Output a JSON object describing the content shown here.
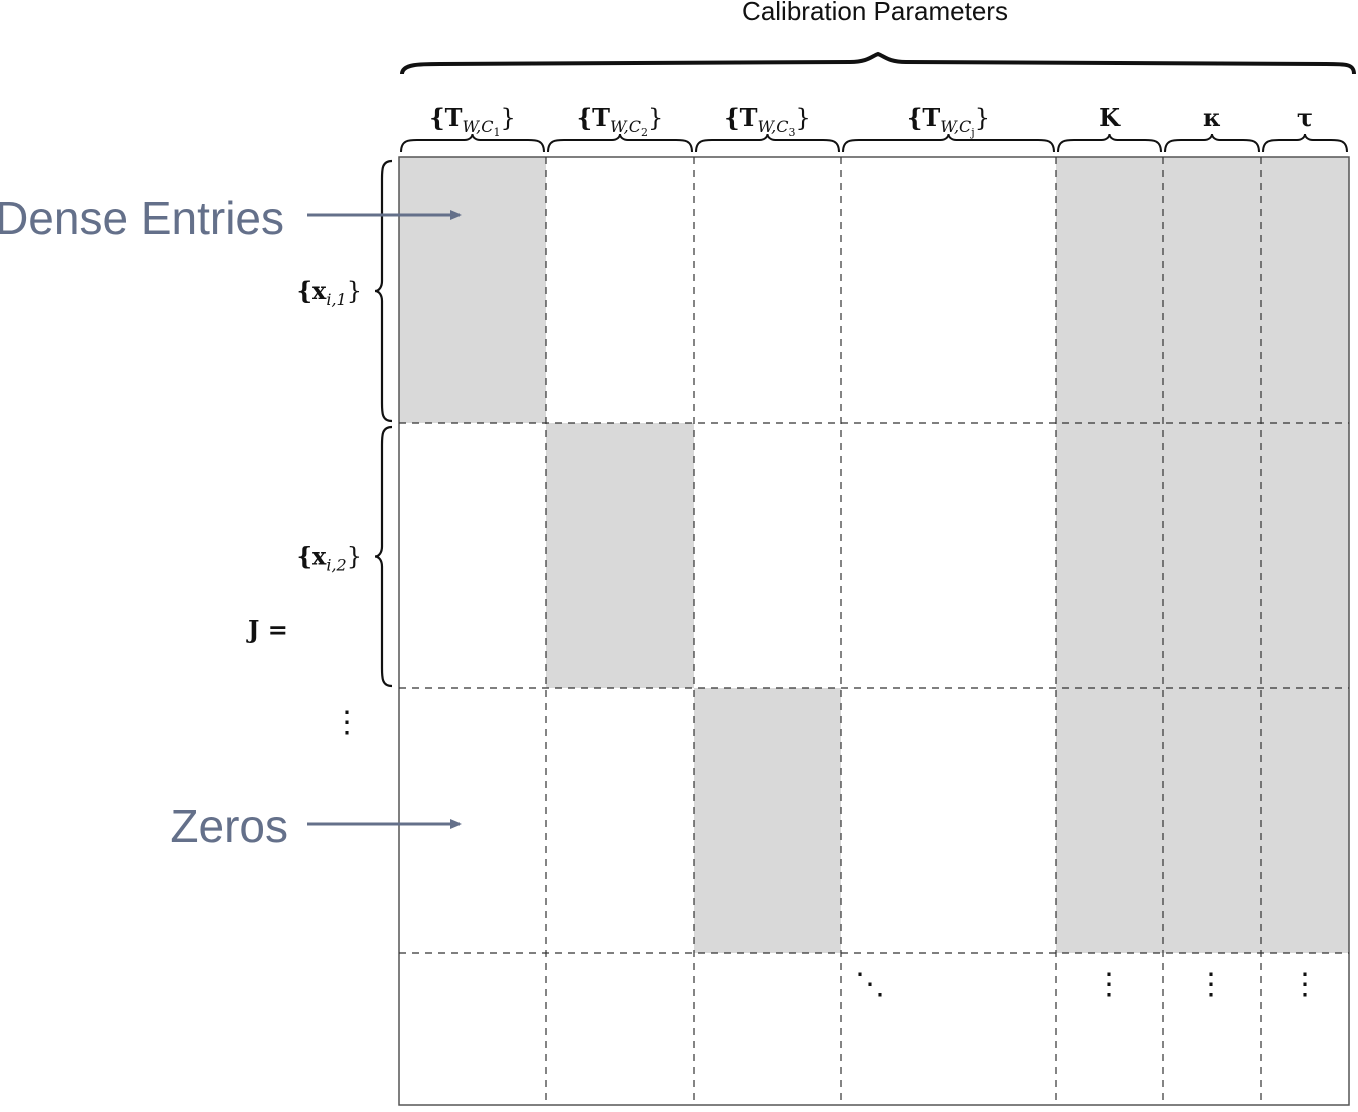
{
  "title": "Calibration Parameters",
  "matrix_label": "J =",
  "columns": [
    {
      "id": "T_WC1",
      "label_main": "{T",
      "label_sub": "W,C",
      "label_subsub": "1",
      "label_close": "}"
    },
    {
      "id": "T_WC2",
      "label_main": "{T",
      "label_sub": "W,C",
      "label_subsub": "2",
      "label_close": "}"
    },
    {
      "id": "T_WC3",
      "label_main": "{T",
      "label_sub": "W,C",
      "label_subsub": "3",
      "label_close": "}"
    },
    {
      "id": "T_WCj",
      "label_main": "{T",
      "label_sub": "W,C",
      "label_subsub": "j",
      "label_close": "}"
    },
    {
      "id": "K",
      "label_main": "K",
      "label_sub": "",
      "label_subsub": "",
      "label_close": ""
    },
    {
      "id": "kappa",
      "label_main": "κ",
      "label_sub": "",
      "label_subsub": "",
      "label_close": ""
    },
    {
      "id": "tau",
      "label_main": "τ",
      "label_sub": "",
      "label_subsub": "",
      "label_close": ""
    }
  ],
  "rows": [
    {
      "id": "x_i1",
      "label_main": "{x",
      "label_sub": "i,1",
      "label_close": "}"
    },
    {
      "id": "x_i2",
      "label_main": "{x",
      "label_sub": "i,2",
      "label_close": "}"
    }
  ],
  "dense_blocks": [
    {
      "row": 0,
      "col": 0
    },
    {
      "row": 0,
      "col": 4
    },
    {
      "row": 0,
      "col": 5
    },
    {
      "row": 0,
      "col": 6
    },
    {
      "row": 1,
      "col": 1
    },
    {
      "row": 1,
      "col": 4
    },
    {
      "row": 1,
      "col": 5
    },
    {
      "row": 1,
      "col": 6
    },
    {
      "row": 2,
      "col": 2
    },
    {
      "row": 2,
      "col": 4
    },
    {
      "row": 2,
      "col": 5
    },
    {
      "row": 2,
      "col": 6
    }
  ],
  "annotations": {
    "dense": "Dense Entries",
    "zeros": "Zeros"
  },
  "ellipsis": {
    "vertical": "⋮",
    "diagonal": "⋱"
  },
  "colors": {
    "dense_fill": "#d9d9d9",
    "annotation": "#64708a",
    "line": "#222222",
    "text": "#111111"
  }
}
